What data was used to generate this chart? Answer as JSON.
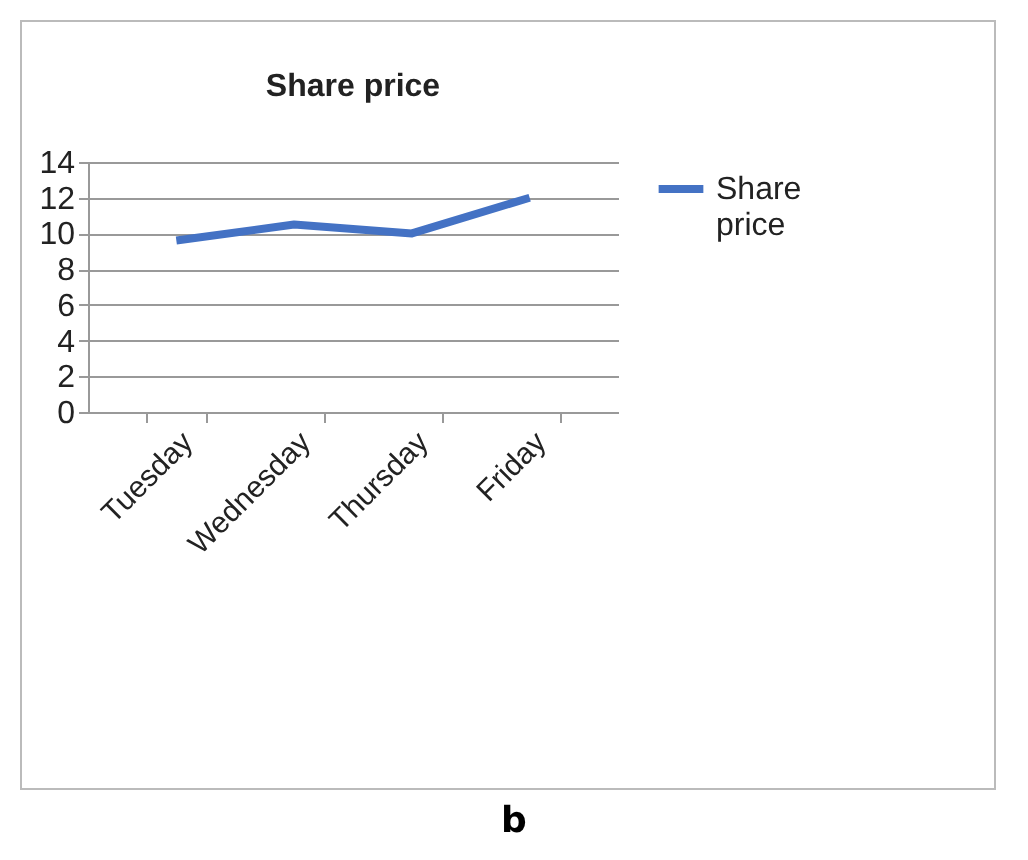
{
  "chart_data": {
    "type": "line",
    "title": "Share price",
    "categories": [
      "Tuesday",
      "Wednesday",
      "Thursday",
      "Friday"
    ],
    "series": [
      {
        "name": "Share price",
        "color": "#4472c4",
        "values": [
          9.6,
          10.5,
          10.0,
          12.0
        ]
      }
    ],
    "ylim": [
      0,
      14
    ],
    "yticks": [
      0,
      2,
      4,
      6,
      8,
      10,
      12,
      14
    ],
    "grid": "y",
    "legend": "right",
    "marker": "none",
    "line_style": "solid",
    "annotations": [
      "b"
    ]
  }
}
